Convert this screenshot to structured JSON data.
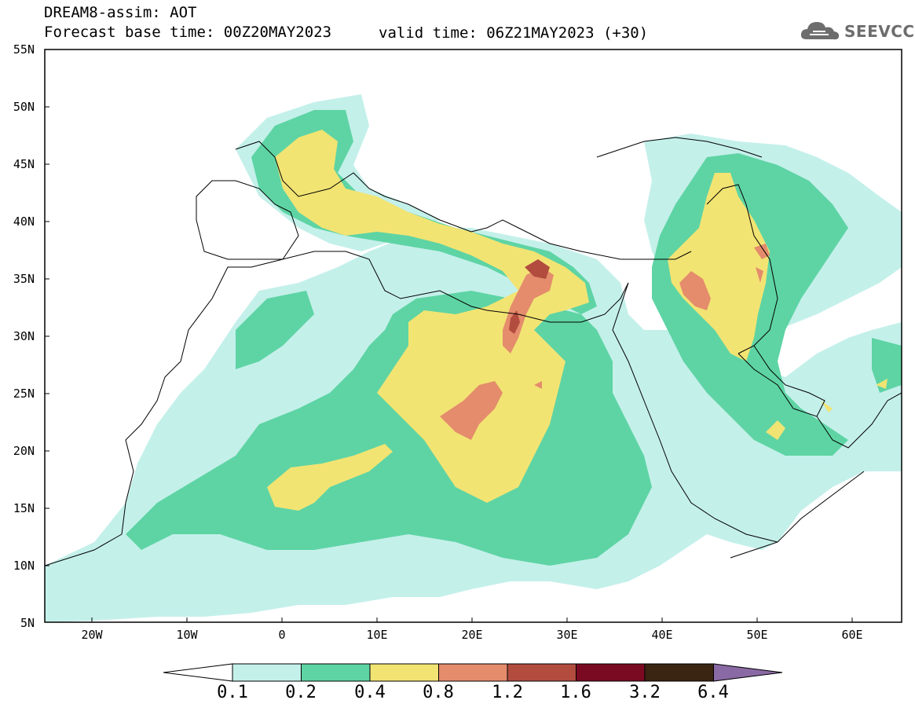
{
  "header": {
    "title_line1": "DREAM8-assim: AOT",
    "title_line2": "Forecast base time: 00Z20MAY2023",
    "valid_time": "valid time: 06Z21MAY2023 (+30)",
    "logo_text": "SEEVCCC"
  },
  "map": {
    "lat_labels": [
      "55N",
      "50N",
      "45N",
      "40N",
      "35N",
      "30N",
      "25N",
      "20N",
      "15N",
      "10N",
      "5N"
    ],
    "lon_labels": [
      "20W",
      "10W",
      "0",
      "10E",
      "20E",
      "30E",
      "40E",
      "50E",
      "60E"
    ],
    "extent": {
      "lon_min": -25,
      "lon_max": 65,
      "lat_min": 5,
      "lat_max": 55
    }
  },
  "colorbar": {
    "labels": [
      "0.1",
      "0.2",
      "0.4",
      "0.8",
      "1.2",
      "1.6",
      "3.2",
      "6.4"
    ],
    "colors": [
      "#ffffff",
      "#c4f0ea",
      "#5ed4a4",
      "#f2e473",
      "#e48c6c",
      "#b24c3f",
      "#7a0a22",
      "#3a2412",
      "#8a6aa4"
    ]
  },
  "legend_colors": {
    "level_0_1": "#c4f0ea",
    "level_0_2": "#5ed4a4",
    "level_0_4": "#f2e473",
    "level_0_8": "#e48c6c",
    "level_1_2": "#b24c3f"
  }
}
